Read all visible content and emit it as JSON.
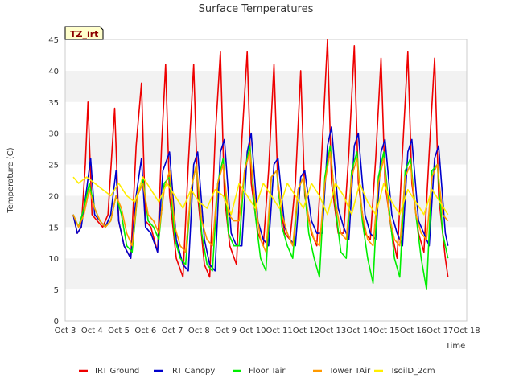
{
  "chart_data": {
    "type": "line",
    "title": "Surface Temperatures",
    "xlabel": "Time",
    "ylabel": "Temperature (C)",
    "badge": "TZ_irt",
    "xlim": [
      3,
      18
    ],
    "ylim": [
      0,
      45
    ],
    "x_ticks": [
      3,
      4,
      5,
      6,
      7,
      8,
      9,
      10,
      11,
      12,
      13,
      14,
      15,
      16,
      17,
      18
    ],
    "x_tick_labels": [
      "Oct 3",
      "Oct 4",
      "Oct 5",
      "Oct 6",
      "Oct 7",
      "Oct 8",
      "Oct 9",
      "Oct 10",
      "Oct 11",
      "Oct 12",
      "Oct 13",
      "Oct 14",
      "Oct 15",
      "Oct 16",
      "Oct 17",
      "Oct 18"
    ],
    "y_ticks": [
      0,
      5,
      10,
      15,
      20,
      25,
      30,
      35,
      40,
      45
    ],
    "grid": "alternating horizontal bands",
    "legend": "bottom",
    "series": [
      {
        "name": "IRT Ground",
        "color": "#ee0000",
        "x": [
          3.3,
          3.45,
          3.6,
          3.75,
          3.85,
          4.0,
          4.2,
          4.4,
          4.6,
          4.85,
          5.0,
          5.2,
          5.45,
          5.65,
          5.85,
          6.0,
          6.2,
          6.45,
          6.6,
          6.75,
          6.9,
          7.15,
          7.4,
          7.6,
          7.8,
          7.95,
          8.2,
          8.4,
          8.6,
          8.8,
          8.95,
          9.15,
          9.4,
          9.6,
          9.8,
          9.95,
          10.2,
          10.4,
          10.6,
          10.8,
          10.95,
          11.2,
          11.4,
          11.6,
          11.8,
          11.95,
          12.2,
          12.4,
          12.6,
          12.8,
          12.95,
          13.2,
          13.4,
          13.6,
          13.8,
          13.95,
          14.2,
          14.4,
          14.6,
          14.8,
          14.95,
          15.2,
          15.4,
          15.6,
          15.8,
          15.95,
          16.2,
          16.4,
          16.6,
          16.8,
          16.95,
          17.2,
          17.3
        ],
        "y": [
          17,
          14,
          15,
          25,
          35,
          17,
          16,
          15,
          17,
          34,
          16,
          12,
          10,
          28,
          38,
          16,
          15,
          11,
          28,
          41,
          20,
          10,
          7,
          25,
          41,
          20,
          9,
          7,
          29,
          43,
          20,
          12,
          9,
          29,
          43,
          22,
          14,
          12,
          24,
          41,
          21,
          14,
          13,
          22,
          40,
          20,
          14,
          12,
          28,
          45,
          22,
          14,
          14,
          27,
          44,
          22,
          14,
          13,
          26,
          42,
          22,
          14,
          10,
          27,
          43,
          22,
          14,
          11,
          27,
          42,
          20,
          10,
          7
        ]
      },
      {
        "name": "IRT Canopy",
        "color": "#0000cc",
        "x": [
          3.3,
          3.45,
          3.6,
          3.8,
          3.95,
          4.1,
          4.3,
          4.5,
          4.7,
          4.9,
          5.0,
          5.2,
          5.45,
          5.65,
          5.85,
          6.0,
          6.2,
          6.45,
          6.65,
          6.9,
          7.15,
          7.4,
          7.6,
          7.8,
          7.95,
          8.2,
          8.4,
          8.6,
          8.8,
          8.95,
          9.2,
          9.4,
          9.6,
          9.8,
          9.95,
          10.2,
          10.4,
          10.6,
          10.8,
          10.95,
          11.2,
          11.4,
          11.6,
          11.8,
          11.95,
          12.2,
          12.4,
          12.6,
          12.8,
          12.95,
          13.2,
          13.4,
          13.6,
          13.8,
          13.95,
          14.2,
          14.4,
          14.6,
          14.8,
          14.95,
          15.2,
          15.4,
          15.6,
          15.8,
          15.95,
          16.2,
          16.4,
          16.6,
          16.8,
          16.95,
          17.2,
          17.3
        ],
        "y": [
          17,
          14,
          15,
          21,
          26,
          17,
          16,
          15,
          17,
          24,
          16,
          12,
          10,
          20,
          26,
          15,
          14,
          11,
          24,
          27,
          13,
          9,
          8,
          25,
          27,
          13,
          9,
          8,
          27,
          29,
          14,
          12,
          12,
          27,
          30,
          16,
          13,
          12,
          25,
          26,
          15,
          13,
          12,
          23,
          24,
          16,
          14,
          14,
          28,
          31,
          18,
          15,
          13,
          28,
          30,
          17,
          14,
          13,
          27,
          29,
          17,
          14,
          12,
          27,
          29,
          16,
          14,
          12,
          26,
          28,
          14,
          12
        ]
      },
      {
        "name": "Floor Tair",
        "color": "#00ee00",
        "x": [
          3.3,
          3.5,
          3.7,
          3.9,
          4.1,
          4.3,
          4.5,
          4.7,
          4.9,
          5.1,
          5.3,
          5.5,
          5.7,
          5.9,
          6.1,
          6.3,
          6.5,
          6.7,
          6.9,
          7.1,
          7.3,
          7.5,
          7.7,
          7.9,
          8.1,
          8.3,
          8.5,
          8.7,
          8.9,
          9.1,
          9.3,
          9.5,
          9.7,
          9.9,
          10.1,
          10.3,
          10.5,
          10.7,
          10.9,
          11.1,
          11.3,
          11.5,
          11.7,
          11.9,
          12.1,
          12.3,
          12.5,
          12.7,
          12.9,
          13.1,
          13.3,
          13.5,
          13.7,
          13.9,
          14.1,
          14.3,
          14.5,
          14.7,
          14.9,
          15.1,
          15.3,
          15.5,
          15.7,
          15.9,
          16.1,
          16.3,
          16.5,
          16.7,
          16.9,
          17.1,
          17.3
        ],
        "y": [
          17,
          15,
          18,
          22,
          18,
          16,
          15,
          16,
          20,
          17,
          12,
          11,
          20,
          23,
          16,
          15,
          13,
          22,
          23,
          13,
          10,
          9,
          21,
          25,
          14,
          9,
          8,
          22,
          26,
          14,
          12,
          12,
          24,
          28,
          17,
          10,
          8,
          23,
          24,
          15,
          12,
          10,
          21,
          23,
          14,
          10,
          7,
          23,
          28,
          18,
          11,
          10,
          24,
          27,
          16,
          10,
          6,
          23,
          27,
          18,
          10,
          7,
          24,
          26,
          17,
          10,
          5,
          24,
          25,
          14,
          10
        ]
      },
      {
        "name": "Tower TAir",
        "color": "#ff9900",
        "x": [
          3.3,
          3.5,
          3.7,
          3.9,
          4.1,
          4.3,
          4.5,
          4.7,
          4.9,
          5.1,
          5.3,
          5.5,
          5.7,
          5.9,
          6.1,
          6.3,
          6.5,
          6.7,
          6.9,
          7.1,
          7.3,
          7.5,
          7.7,
          7.9,
          8.1,
          8.3,
          8.5,
          8.7,
          8.9,
          9.1,
          9.3,
          9.5,
          9.7,
          9.9,
          10.1,
          10.3,
          10.5,
          10.7,
          10.9,
          11.1,
          11.3,
          11.5,
          11.7,
          11.9,
          12.1,
          12.3,
          12.5,
          12.7,
          12.9,
          13.1,
          13.3,
          13.5,
          13.7,
          13.9,
          14.1,
          14.3,
          14.5,
          14.7,
          14.9,
          15.1,
          15.3,
          15.5,
          15.7,
          15.9,
          16.1,
          16.3,
          16.5,
          16.7,
          16.9,
          17.1,
          17.3
        ],
        "y": [
          17,
          15,
          17,
          21,
          18,
          16,
          15,
          16,
          20,
          18,
          14,
          12,
          20,
          22,
          17,
          16,
          14,
          21,
          24,
          15,
          12,
          11,
          21,
          25,
          16,
          13,
          12,
          22,
          25,
          17,
          16,
          16,
          24,
          27,
          19,
          13,
          11,
          23,
          24,
          17,
          14,
          12,
          21,
          23,
          16,
          13,
          12,
          22,
          27,
          19,
          14,
          13,
          23,
          26,
          17,
          13,
          12,
          22,
          26,
          17,
          13,
          12,
          23,
          25,
          17,
          14,
          13,
          23,
          25,
          17,
          16
        ]
      },
      {
        "name": "TsoilD_2cm",
        "color": "#ffee00",
        "x": [
          3.3,
          3.5,
          3.8,
          4.1,
          4.4,
          4.7,
          5.0,
          5.3,
          5.6,
          5.9,
          6.2,
          6.5,
          6.8,
          7.1,
          7.4,
          7.7,
          8.0,
          8.3,
          8.6,
          8.9,
          9.2,
          9.5,
          9.8,
          10.1,
          10.4,
          10.7,
          11.0,
          11.3,
          11.6,
          11.9,
          12.2,
          12.5,
          12.8,
          13.1,
          13.4,
          13.7,
          14.0,
          14.3,
          14.6,
          14.9,
          15.2,
          15.5,
          15.8,
          16.1,
          16.4,
          16.7,
          17.0,
          17.3
        ],
        "y": [
          23,
          22,
          23,
          22,
          21,
          20,
          22,
          20,
          19,
          23,
          21,
          19,
          22,
          20,
          18,
          21,
          19,
          18,
          21,
          20,
          17,
          22,
          20,
          18,
          22,
          20,
          18,
          22,
          20,
          18,
          22,
          20,
          17,
          22,
          20,
          17,
          22,
          19,
          17,
          22,
          19,
          17,
          21,
          19,
          17,
          21,
          19,
          17
        ]
      }
    ]
  }
}
